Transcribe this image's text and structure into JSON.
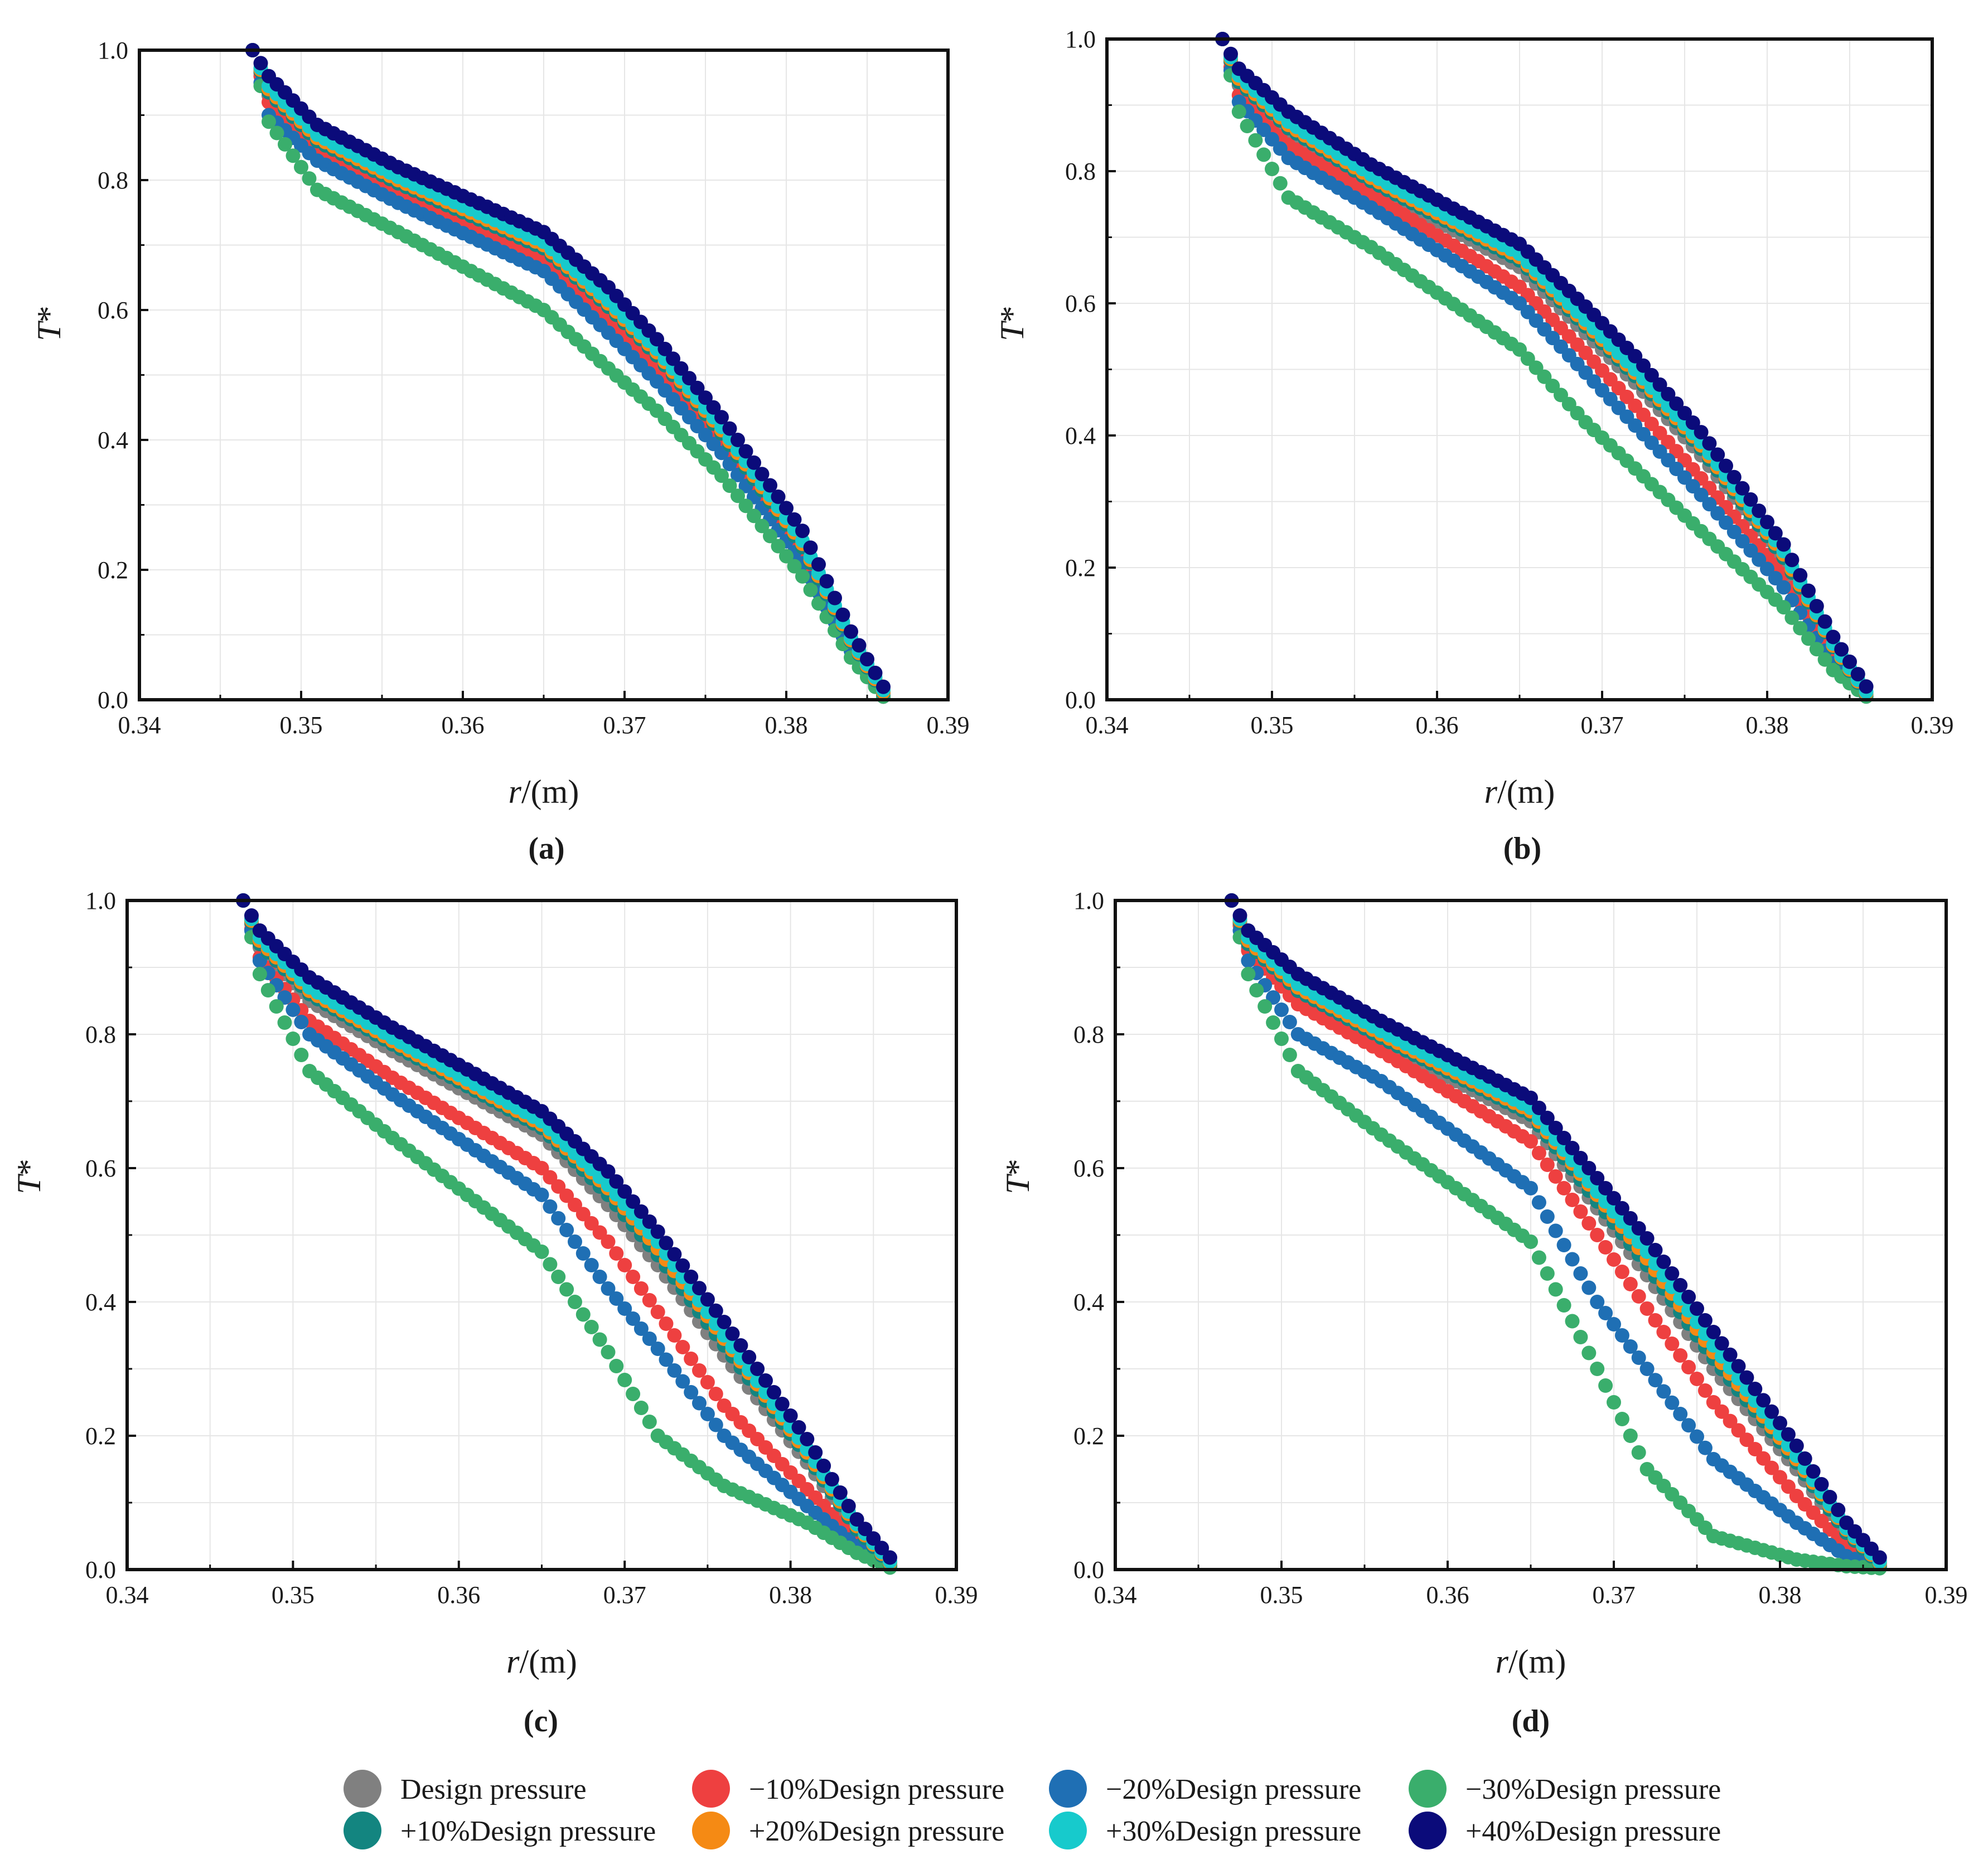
{
  "figure": {
    "legend": [
      {
        "label": "Design pressure",
        "color": "#808080"
      },
      {
        "label": "−10%Design pressure",
        "color": "#EE4040"
      },
      {
        "label": "−20%Design pressure",
        "color": "#1F6FB4"
      },
      {
        "label": "−30%Design pressure",
        "color": "#3AAE6C"
      },
      {
        "label": "+10%Design pressure",
        "color": "#138580"
      },
      {
        "label": "+20%Design pressure",
        "color": "#F58A14"
      },
      {
        "label": "+30%Design pressure",
        "color": "#17CACC"
      },
      {
        "label": "+40%Design pressure",
        "color": "#0B0B7A"
      }
    ]
  },
  "chart_data": [
    {
      "type": "scatter",
      "panel": "(a)",
      "xlabel": "r/(m)",
      "ylabel": "T*",
      "xlim": [
        0.34,
        0.39
      ],
      "ylim": [
        0.0,
        1.0
      ],
      "xticks": [
        "0.34",
        "0.35",
        "0.36",
        "0.37",
        "0.38",
        "0.39"
      ],
      "yticks": [
        "0.0",
        "0.2",
        "0.4",
        "0.6",
        "0.8",
        "1.0"
      ],
      "grid": true,
      "x_start": 0.347,
      "x_end": 0.386,
      "x_step": 0.0005,
      "profiles": {
        "Design pressure": {
          "x": [
            0.347,
            0.348,
            0.351,
            0.356,
            0.365,
            0.369,
            0.372,
            0.376,
            0.381,
            0.384,
            0.386
          ],
          "y": [
            1.0,
            0.93,
            0.855,
            0.79,
            0.69,
            0.595,
            0.52,
            0.405,
            0.23,
            0.085,
            0.005
          ]
        },
        "−10%Design pressure": {
          "x": [
            0.347,
            0.348,
            0.351,
            0.356,
            0.365,
            0.369,
            0.372,
            0.376,
            0.381,
            0.384,
            0.386
          ],
          "y": [
            1.0,
            0.92,
            0.845,
            0.78,
            0.675,
            0.585,
            0.51,
            0.395,
            0.22,
            0.08,
            0.005
          ]
        },
        "−20%Design pressure": {
          "x": [
            0.347,
            0.348,
            0.351,
            0.356,
            0.365,
            0.369,
            0.372,
            0.376,
            0.381,
            0.384,
            0.386
          ],
          "y": [
            1.0,
            0.9,
            0.83,
            0.765,
            0.66,
            0.565,
            0.49,
            0.38,
            0.21,
            0.075,
            0.005
          ]
        },
        "−30%Design pressure": {
          "x": [
            0.347,
            0.348,
            0.351,
            0.356,
            0.365,
            0.369,
            0.372,
            0.376,
            0.381,
            0.384,
            0.386
          ],
          "y": [
            1.0,
            0.89,
            0.785,
            0.72,
            0.6,
            0.51,
            0.445,
            0.345,
            0.19,
            0.065,
            0.005
          ]
        },
        "+10%Design pressure": {
          "x": [
            0.347,
            0.348,
            0.351,
            0.356,
            0.365,
            0.369,
            0.372,
            0.376,
            0.381,
            0.384,
            0.386
          ],
          "y": [
            1.0,
            0.935,
            0.86,
            0.795,
            0.695,
            0.605,
            0.53,
            0.41,
            0.235,
            0.09,
            0.01
          ]
        },
        "+20%Design pressure": {
          "x": [
            0.347,
            0.348,
            0.351,
            0.356,
            0.365,
            0.369,
            0.372,
            0.376,
            0.381,
            0.384,
            0.386
          ],
          "y": [
            1.0,
            0.94,
            0.865,
            0.8,
            0.7,
            0.61,
            0.535,
            0.415,
            0.24,
            0.092,
            0.012
          ]
        },
        "+30%Design pressure": {
          "x": [
            0.347,
            0.348,
            0.351,
            0.356,
            0.365,
            0.369,
            0.372,
            0.376,
            0.381,
            0.384,
            0.386
          ],
          "y": [
            1.0,
            0.945,
            0.87,
            0.805,
            0.705,
            0.615,
            0.54,
            0.42,
            0.245,
            0.095,
            0.015
          ]
        },
        "+40%Design pressure": {
          "x": [
            0.347,
            0.348,
            0.351,
            0.356,
            0.365,
            0.369,
            0.372,
            0.376,
            0.381,
            0.384,
            0.386
          ],
          "y": [
            1.0,
            0.96,
            0.885,
            0.82,
            0.72,
            0.635,
            0.555,
            0.435,
            0.26,
            0.105,
            0.02
          ]
        }
      }
    },
    {
      "type": "scatter",
      "panel": "(b)",
      "xlabel": "r/(m)",
      "ylabel": "T*",
      "xlim": [
        0.34,
        0.39
      ],
      "ylim": [
        0.0,
        1.0
      ],
      "xticks": [
        "0.34",
        "0.35",
        "0.36",
        "0.37",
        "0.38",
        "0.39"
      ],
      "yticks": [
        "0.0",
        "0.2",
        "0.4",
        "0.6",
        "0.8",
        "1.0"
      ],
      "grid": true,
      "x_start": 0.347,
      "x_end": 0.386,
      "x_step": 0.0005,
      "profiles": {
        "Design pressure": {
          "x": [
            0.347,
            0.348,
            0.351,
            0.356,
            0.365,
            0.369,
            0.372,
            0.376,
            0.381,
            0.384,
            0.386
          ],
          "y": [
            1.0,
            0.93,
            0.86,
            0.78,
            0.655,
            0.555,
            0.48,
            0.37,
            0.21,
            0.075,
            0.005
          ]
        },
        "−10%Design pressure": {
          "x": [
            0.347,
            0.348,
            0.351,
            0.356,
            0.365,
            0.369,
            0.372,
            0.376,
            0.381,
            0.384,
            0.386
          ],
          "y": [
            1.0,
            0.915,
            0.84,
            0.765,
            0.625,
            0.525,
            0.445,
            0.335,
            0.19,
            0.065,
            0.005
          ]
        },
        "−20%Design pressure": {
          "x": [
            0.347,
            0.348,
            0.351,
            0.356,
            0.365,
            0.369,
            0.372,
            0.376,
            0.381,
            0.384,
            0.386
          ],
          "y": [
            1.0,
            0.905,
            0.82,
            0.745,
            0.6,
            0.495,
            0.415,
            0.31,
            0.17,
            0.055,
            0.005
          ]
        },
        "−30%Design pressure": {
          "x": [
            0.347,
            0.348,
            0.351,
            0.356,
            0.365,
            0.369,
            0.372,
            0.376,
            0.381,
            0.384,
            0.386
          ],
          "y": [
            1.0,
            0.89,
            0.76,
            0.685,
            0.53,
            0.42,
            0.35,
            0.255,
            0.14,
            0.045,
            0.005
          ]
        },
        "+10%Design pressure": {
          "x": [
            0.347,
            0.348,
            0.351,
            0.356,
            0.365,
            0.369,
            0.372,
            0.376,
            0.381,
            0.384,
            0.386
          ],
          "y": [
            1.0,
            0.935,
            0.865,
            0.785,
            0.665,
            0.565,
            0.49,
            0.38,
            0.215,
            0.08,
            0.008
          ]
        },
        "+20%Design pressure": {
          "x": [
            0.347,
            0.348,
            0.351,
            0.356,
            0.365,
            0.369,
            0.372,
            0.376,
            0.381,
            0.384,
            0.386
          ],
          "y": [
            1.0,
            0.94,
            0.87,
            0.79,
            0.67,
            0.57,
            0.495,
            0.385,
            0.22,
            0.082,
            0.01
          ]
        },
        "+30%Design pressure": {
          "x": [
            0.347,
            0.348,
            0.351,
            0.356,
            0.365,
            0.369,
            0.372,
            0.376,
            0.381,
            0.384,
            0.386
          ],
          "y": [
            1.0,
            0.945,
            0.875,
            0.795,
            0.675,
            0.575,
            0.5,
            0.39,
            0.225,
            0.085,
            0.012
          ]
        },
        "+40%Design pressure": {
          "x": [
            0.347,
            0.348,
            0.351,
            0.356,
            0.365,
            0.369,
            0.372,
            0.376,
            0.381,
            0.384,
            0.386
          ],
          "y": [
            1.0,
            0.955,
            0.89,
            0.81,
            0.69,
            0.595,
            0.52,
            0.405,
            0.235,
            0.095,
            0.02
          ]
        }
      }
    },
    {
      "type": "scatter",
      "panel": "(c)",
      "xlabel": "r/(m)",
      "ylabel": "T*",
      "xlim": [
        0.34,
        0.39
      ],
      "ylim": [
        0.0,
        1.0
      ],
      "xticks": [
        "0.34",
        "0.35",
        "0.36",
        "0.37",
        "0.38",
        "0.39"
      ],
      "yticks": [
        "0.0",
        "0.2",
        "0.4",
        "0.6",
        "0.8",
        "1.0"
      ],
      "grid": true,
      "x_start": 0.347,
      "x_end": 0.386,
      "x_step": 0.0005,
      "profiles": {
        "Design pressure": {
          "x": [
            0.347,
            0.348,
            0.351,
            0.356,
            0.365,
            0.369,
            0.372,
            0.376,
            0.381,
            0.384,
            0.386
          ],
          "y": [
            1.0,
            0.93,
            0.85,
            0.775,
            0.65,
            0.545,
            0.455,
            0.32,
            0.16,
            0.055,
            0.005
          ]
        },
        "−10%Design pressure": {
          "x": [
            0.347,
            0.348,
            0.351,
            0.356,
            0.365,
            0.369,
            0.372,
            0.376,
            0.381,
            0.384,
            0.386
          ],
          "y": [
            1.0,
            0.915,
            0.82,
            0.735,
            0.6,
            0.49,
            0.385,
            0.245,
            0.12,
            0.045,
            0.005
          ]
        },
        "−20%Design pressure": {
          "x": [
            0.347,
            0.348,
            0.351,
            0.356,
            0.365,
            0.369,
            0.372,
            0.376,
            0.381,
            0.384,
            0.386
          ],
          "y": [
            1.0,
            0.91,
            0.8,
            0.71,
            0.56,
            0.42,
            0.33,
            0.2,
            0.095,
            0.035,
            0.005
          ]
        },
        "−30%Design pressure": {
          "x": [
            0.347,
            0.348,
            0.351,
            0.356,
            0.365,
            0.369,
            0.372,
            0.376,
            0.381,
            0.384,
            0.386
          ],
          "y": [
            1.0,
            0.89,
            0.745,
            0.645,
            0.475,
            0.325,
            0.2,
            0.125,
            0.07,
            0.025,
            0.003
          ]
        },
        "+10%Design pressure": {
          "x": [
            0.347,
            0.348,
            0.351,
            0.356,
            0.365,
            0.369,
            0.372,
            0.376,
            0.381,
            0.384,
            0.386
          ],
          "y": [
            1.0,
            0.935,
            0.86,
            0.785,
            0.66,
            0.56,
            0.47,
            0.335,
            0.17,
            0.06,
            0.008
          ]
        },
        "+20%Design pressure": {
          "x": [
            0.347,
            0.348,
            0.351,
            0.356,
            0.365,
            0.369,
            0.372,
            0.376,
            0.381,
            0.384,
            0.386
          ],
          "y": [
            1.0,
            0.94,
            0.865,
            0.79,
            0.665,
            0.57,
            0.48,
            0.345,
            0.175,
            0.065,
            0.01
          ]
        },
        "+30%Design pressure": {
          "x": [
            0.347,
            0.348,
            0.351,
            0.356,
            0.365,
            0.369,
            0.372,
            0.376,
            0.381,
            0.384,
            0.386
          ],
          "y": [
            1.0,
            0.945,
            0.87,
            0.795,
            0.67,
            0.575,
            0.49,
            0.35,
            0.18,
            0.068,
            0.012
          ]
        },
        "+40%Design pressure": {
          "x": [
            0.347,
            0.348,
            0.351,
            0.356,
            0.365,
            0.369,
            0.372,
            0.376,
            0.381,
            0.384,
            0.386
          ],
          "y": [
            1.0,
            0.955,
            0.885,
            0.81,
            0.685,
            0.595,
            0.505,
            0.37,
            0.195,
            0.075,
            0.018
          ]
        }
      }
    },
    {
      "type": "scatter",
      "panel": "(d)",
      "xlabel": "r/(m)",
      "ylabel": "T*",
      "xlim": [
        0.34,
        0.39
      ],
      "ylim": [
        0.0,
        1.0
      ],
      "xticks": [
        "0.34",
        "0.35",
        "0.36",
        "0.37",
        "0.38",
        "0.39"
      ],
      "yticks": [
        "0.0",
        "0.2",
        "0.4",
        "0.6",
        "0.8",
        "1.0"
      ],
      "grid": true,
      "x_start": 0.347,
      "x_end": 0.386,
      "x_step": 0.0005,
      "profiles": {
        "Design pressure": {
          "x": [
            0.347,
            0.348,
            0.351,
            0.356,
            0.365,
            0.369,
            0.372,
            0.376,
            0.381,
            0.384,
            0.386
          ],
          "y": [
            1.0,
            0.93,
            0.86,
            0.79,
            0.67,
            0.54,
            0.44,
            0.3,
            0.15,
            0.05,
            0.005
          ]
        },
        "−10%Design pressure": {
          "x": [
            0.347,
            0.348,
            0.351,
            0.356,
            0.365,
            0.369,
            0.372,
            0.376,
            0.381,
            0.384,
            0.386
          ],
          "y": [
            1.0,
            0.925,
            0.845,
            0.775,
            0.64,
            0.5,
            0.39,
            0.25,
            0.11,
            0.035,
            0.005
          ]
        },
        "−20%Design pressure": {
          "x": [
            0.347,
            0.348,
            0.351,
            0.356,
            0.365,
            0.369,
            0.372,
            0.376,
            0.381,
            0.384,
            0.386
          ],
          "y": [
            1.0,
            0.91,
            0.8,
            0.73,
            0.57,
            0.4,
            0.3,
            0.165,
            0.07,
            0.02,
            0.003
          ]
        },
        "−30%Design pressure": {
          "x": [
            0.347,
            0.348,
            0.351,
            0.356,
            0.365,
            0.369,
            0.372,
            0.376,
            0.381,
            0.384,
            0.386
          ],
          "y": [
            1.0,
            0.89,
            0.745,
            0.65,
            0.49,
            0.3,
            0.15,
            0.05,
            0.015,
            0.005,
            0.002
          ]
        },
        "+10%Design pressure": {
          "x": [
            0.347,
            0.348,
            0.351,
            0.356,
            0.365,
            0.369,
            0.372,
            0.376,
            0.381,
            0.384,
            0.386
          ],
          "y": [
            1.0,
            0.935,
            0.865,
            0.795,
            0.68,
            0.55,
            0.455,
            0.315,
            0.16,
            0.055,
            0.008
          ]
        },
        "+20%Design pressure": {
          "x": [
            0.347,
            0.348,
            0.351,
            0.356,
            0.365,
            0.369,
            0.372,
            0.376,
            0.381,
            0.384,
            0.386
          ],
          "y": [
            1.0,
            0.94,
            0.87,
            0.8,
            0.685,
            0.56,
            0.465,
            0.325,
            0.165,
            0.06,
            0.01
          ]
        },
        "+30%Design pressure": {
          "x": [
            0.347,
            0.348,
            0.351,
            0.356,
            0.365,
            0.369,
            0.372,
            0.376,
            0.381,
            0.384,
            0.386
          ],
          "y": [
            1.0,
            0.945,
            0.875,
            0.805,
            0.69,
            0.565,
            0.475,
            0.335,
            0.17,
            0.062,
            0.012
          ]
        },
        "+40%Design pressure": {
          "x": [
            0.347,
            0.348,
            0.351,
            0.356,
            0.365,
            0.369,
            0.372,
            0.376,
            0.381,
            0.384,
            0.386
          ],
          "y": [
            1.0,
            0.955,
            0.89,
            0.82,
            0.705,
            0.585,
            0.495,
            0.355,
            0.185,
            0.07,
            0.018
          ]
        }
      }
    }
  ]
}
